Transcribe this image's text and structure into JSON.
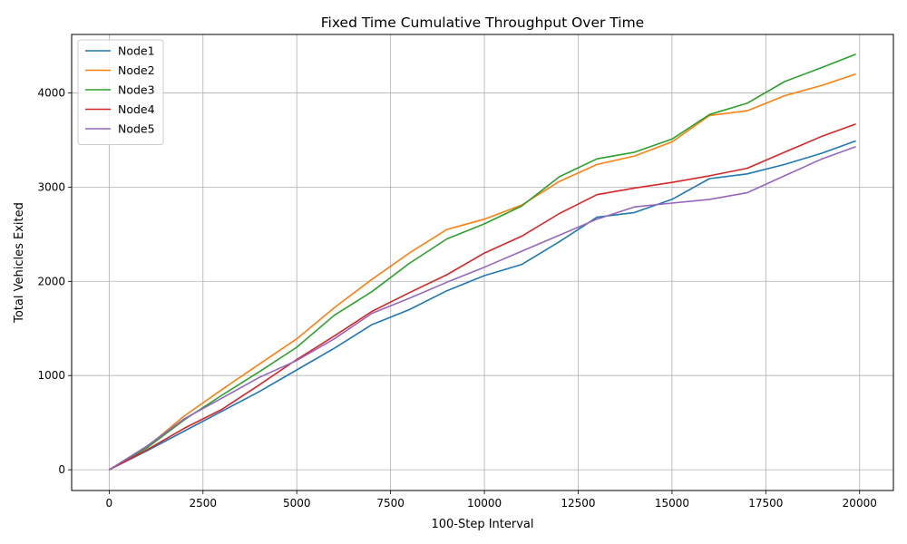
{
  "chart_data": {
    "type": "line",
    "title": "Fixed Time Cumulative Throughput Over Time",
    "xlabel": "100-Step Interval",
    "ylabel": "Total Vehicles Exited",
    "xlim": [
      -1000,
      20900
    ],
    "ylim": [
      -220,
      4620
    ],
    "xticks": [
      0,
      2500,
      5000,
      7500,
      10000,
      12500,
      15000,
      17500,
      20000
    ],
    "yticks": [
      0,
      1000,
      2000,
      3000,
      4000
    ],
    "grid": true,
    "legend_position": "top-left",
    "x": [
      0,
      1000,
      2000,
      3000,
      4000,
      5000,
      6000,
      7000,
      8000,
      9000,
      10000,
      11000,
      12000,
      13000,
      14000,
      15000,
      16000,
      17000,
      18000,
      19000,
      19900
    ],
    "series": [
      {
        "name": "Node1",
        "color": "#1f77b4",
        "values": [
          0,
          200,
          410,
          620,
          830,
          1060,
          1290,
          1540,
          1700,
          1900,
          2060,
          2180,
          2420,
          2680,
          2730,
          2870,
          3090,
          3140,
          3240,
          3360,
          3490
        ]
      },
      {
        "name": "Node2",
        "color": "#ff7f0e",
        "values": [
          0,
          240,
          570,
          850,
          1120,
          1390,
          1720,
          2020,
          2300,
          2550,
          2660,
          2810,
          3060,
          3240,
          3330,
          3480,
          3760,
          3810,
          3970,
          4080,
          4200
        ]
      },
      {
        "name": "Node3",
        "color": "#2ca02c",
        "values": [
          0,
          230,
          530,
          790,
          1040,
          1300,
          1640,
          1890,
          2190,
          2450,
          2610,
          2800,
          3110,
          3300,
          3370,
          3510,
          3770,
          3890,
          4120,
          4270,
          4410
        ]
      },
      {
        "name": "Node4",
        "color": "#d62728",
        "values": [
          0,
          210,
          440,
          640,
          900,
          1170,
          1420,
          1680,
          1880,
          2070,
          2300,
          2480,
          2720,
          2920,
          2990,
          3050,
          3120,
          3200,
          3370,
          3540,
          3670
        ]
      },
      {
        "name": "Node5",
        "color": "#9467bd",
        "values": [
          0,
          250,
          540,
          760,
          980,
          1160,
          1390,
          1660,
          1820,
          1990,
          2150,
          2320,
          2490,
          2660,
          2790,
          2830,
          2870,
          2940,
          3120,
          3300,
          3430
        ]
      }
    ]
  }
}
